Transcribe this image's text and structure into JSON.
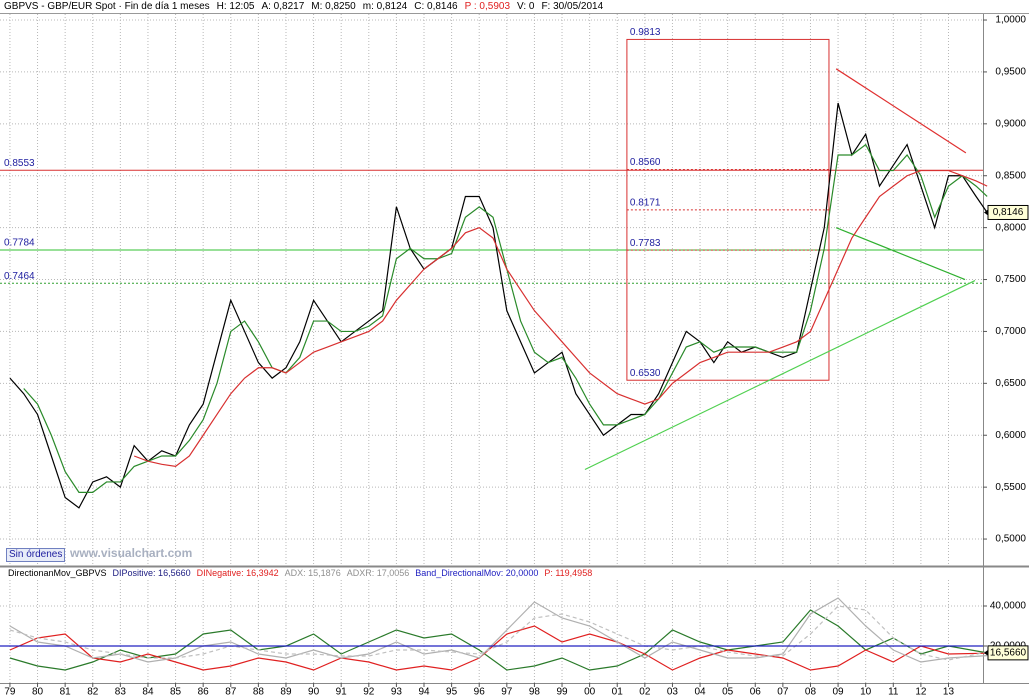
{
  "header": {
    "items": [
      {
        "text": "GBPVS - GBP/EUR Spot · Fin de día 1 meses",
        "color": "#000000"
      },
      {
        "text": "H: 12:05",
        "color": "#000000"
      },
      {
        "text": "A: 0,8217",
        "color": "#000000"
      },
      {
        "text": "M: 0,8250",
        "color": "#000000"
      },
      {
        "text": "m: 0,8124",
        "color": "#000000"
      },
      {
        "text": "C: 0,8146",
        "color": "#000000"
      },
      {
        "text": "P : 0,5903",
        "color": "#e02020"
      },
      {
        "text": "V: 0",
        "color": "#000000"
      },
      {
        "text": "F: 30/05/2014",
        "color": "#000000"
      }
    ]
  },
  "status": {
    "button": "Sin órdenes",
    "watermark": "www.visualchart.com"
  },
  "chart_data": [
    {
      "type": "line",
      "x": [
        1979,
        1979.5,
        1980,
        1980.5,
        1981,
        1981.5,
        1982,
        1982.5,
        1983,
        1983.5,
        1984,
        1984.5,
        1985,
        1985.5,
        1986,
        1986.5,
        1987,
        1987.5,
        1988,
        1988.5,
        1989,
        1989.5,
        1990,
        1990.5,
        1991,
        1991.5,
        1992,
        1992.5,
        1993,
        1993.5,
        1994,
        1994.5,
        1995,
        1995.5,
        1996,
        1996.5,
        1997,
        1997.5,
        1998,
        1998.5,
        1999,
        1999.5,
        2000,
        2000.5,
        2001,
        2001.5,
        2002,
        2002.5,
        2003,
        2003.5,
        2004,
        2004.5,
        2005,
        2005.5,
        2006,
        2006.5,
        2007,
        2007.5,
        2008,
        2008.5,
        2009,
        2009.5,
        2010,
        2010.5,
        2011,
        2011.5,
        2012,
        2012.5,
        2013,
        2013.5,
        2014,
        2014.4
      ],
      "series": [
        {
          "color": "#000000",
          "values": [
            0.655,
            0.64,
            0.62,
            0.58,
            0.54,
            0.53,
            0.555,
            0.56,
            0.55,
            0.59,
            0.575,
            0.585,
            0.58,
            0.61,
            0.63,
            0.68,
            0.73,
            0.7,
            0.67,
            0.655,
            0.665,
            0.69,
            0.73,
            0.71,
            0.69,
            0.7,
            0.71,
            0.72,
            0.82,
            0.78,
            0.76,
            0.77,
            0.78,
            0.83,
            0.83,
            0.8,
            0.72,
            0.69,
            0.66,
            0.67,
            0.68,
            0.64,
            0.62,
            0.6,
            0.61,
            0.62,
            0.62,
            0.64,
            0.67,
            0.7,
            0.69,
            0.67,
            0.69,
            0.68,
            0.685,
            0.68,
            0.675,
            0.68,
            0.74,
            0.8,
            0.92,
            0.87,
            0.89,
            0.84,
            0.86,
            0.88,
            0.84,
            0.8,
            0.85,
            0.85,
            0.83,
            0.8146
          ]
        },
        {
          "color": "#2a8a2a",
          "values": [
            null,
            0.645,
            0.63,
            0.6,
            0.565,
            0.545,
            0.545,
            0.555,
            0.555,
            0.57,
            0.575,
            0.58,
            0.58,
            0.595,
            0.615,
            0.65,
            0.7,
            0.71,
            0.69,
            0.665,
            0.66,
            0.675,
            0.71,
            0.71,
            0.7,
            0.7,
            0.705,
            0.715,
            0.77,
            0.78,
            0.77,
            0.77,
            0.775,
            0.81,
            0.82,
            0.81,
            0.76,
            0.71,
            0.68,
            0.67,
            0.675,
            0.655,
            0.63,
            0.61,
            0.61,
            0.615,
            0.62,
            0.635,
            0.66,
            0.685,
            0.69,
            0.68,
            0.685,
            0.685,
            0.685,
            0.68,
            0.68,
            0.68,
            0.72,
            0.78,
            0.87,
            0.87,
            0.88,
            0.855,
            0.855,
            0.87,
            0.85,
            0.81,
            0.84,
            0.85,
            0.84,
            0.83
          ]
        },
        {
          "color": "#d83030",
          "values": [
            null,
            null,
            null,
            null,
            null,
            null,
            null,
            null,
            null,
            0.58,
            0.575,
            0.572,
            0.57,
            0.58,
            0.6,
            0.62,
            0.64,
            0.655,
            0.665,
            0.665,
            0.66,
            0.67,
            0.68,
            0.685,
            0.69,
            0.695,
            0.7,
            0.71,
            0.73,
            0.745,
            0.76,
            0.77,
            0.78,
            0.795,
            0.8,
            0.79,
            0.76,
            0.74,
            0.72,
            0.705,
            0.69,
            0.675,
            0.66,
            0.65,
            0.64,
            0.635,
            0.63,
            0.635,
            0.65,
            0.66,
            0.67,
            0.675,
            0.68,
            0.68,
            0.68,
            0.68,
            0.685,
            0.69,
            0.7,
            0.73,
            0.76,
            0.79,
            0.81,
            0.83,
            0.84,
            0.85,
            0.855,
            0.855,
            0.855,
            0.85,
            0.845,
            0.84
          ]
        }
      ],
      "xlim": [
        1978.64,
        2014.25
      ],
      "ylim": [
        0.475,
        1.0058
      ],
      "yticks": [
        {
          "value": 0.5,
          "label": "0,5000"
        },
        {
          "value": 0.55,
          "label": "0,5500"
        },
        {
          "value": 0.6,
          "label": "0,6000"
        },
        {
          "value": 0.65,
          "label": "0,6500"
        },
        {
          "value": 0.7,
          "label": "0,7000"
        },
        {
          "value": 0.75,
          "label": "0,7500"
        },
        {
          "value": 0.8,
          "label": "0,8000"
        },
        {
          "value": 0.85,
          "label": "0,8500"
        },
        {
          "value": 0.9,
          "label": "0,9000"
        },
        {
          "value": 0.95,
          "label": "0,9500"
        },
        {
          "value": 1.0,
          "label": "1,0000"
        }
      ],
      "xticks": [
        {
          "value": 1979,
          "label": "79"
        },
        {
          "value": 1980,
          "label": "80"
        },
        {
          "value": 1981,
          "label": "81"
        },
        {
          "value": 1982,
          "label": "82"
        },
        {
          "value": 1983,
          "label": "83"
        },
        {
          "value": 1984,
          "label": "84"
        },
        {
          "value": 1985,
          "label": "85"
        },
        {
          "value": 1986,
          "label": "86"
        },
        {
          "value": 1987,
          "label": "87"
        },
        {
          "value": 1988,
          "label": "88"
        },
        {
          "value": 1989,
          "label": "89"
        },
        {
          "value": 1990,
          "label": "90"
        },
        {
          "value": 1991,
          "label": "91"
        },
        {
          "value": 1992,
          "label": "92"
        },
        {
          "value": 1993,
          "label": "93"
        },
        {
          "value": 1994,
          "label": "94"
        },
        {
          "value": 1995,
          "label": "95"
        },
        {
          "value": 1996,
          "label": "96"
        },
        {
          "value": 1997,
          "label": "97"
        },
        {
          "value": 1998,
          "label": "98"
        },
        {
          "value": 1999,
          "label": "99"
        },
        {
          "value": 2000,
          "label": "00"
        },
        {
          "value": 2001,
          "label": "01"
        },
        {
          "value": 2002,
          "label": "02"
        },
        {
          "value": 2003,
          "label": "03"
        },
        {
          "value": 2004,
          "label": "04"
        },
        {
          "value": 2005,
          "label": "05"
        },
        {
          "value": 2006,
          "label": "06"
        },
        {
          "value": 2007,
          "label": "07"
        },
        {
          "value": 2008,
          "label": "08"
        },
        {
          "value": 2009,
          "label": "09"
        },
        {
          "value": 2010,
          "label": "10"
        },
        {
          "value": 2011,
          "label": "11"
        },
        {
          "value": 2012,
          "label": "12"
        },
        {
          "value": 2013,
          "label": "13"
        }
      ],
      "grid": true,
      "hlines": [
        {
          "value": 0.8553,
          "color": "#d83030",
          "dashed": false
        },
        {
          "value": 0.7784,
          "color": "#30c030",
          "dashed": false
        },
        {
          "value": 0.7464,
          "color": "#30a030",
          "dashed": true
        }
      ],
      "fib": {
        "color": "#d83030",
        "x": [
          2001.35,
          2008.67
        ],
        "levels": [
          0.9813,
          {
            "value": 0.856,
            "label": "0.8560"
          },
          0.8171,
          0.7783,
          {
            "value": 0.653,
            "label": "0.6530"
          }
        ]
      },
      "trendlines": [
        {
          "color": "#50d050",
          "x": [
            1999.83,
            2013.96
          ],
          "y": [
            0.567,
            0.749
          ]
        },
        {
          "color": "#e03030",
          "x": [
            2008.93,
            2013.63
          ],
          "y": [
            0.953,
            0.872
          ]
        },
        {
          "color": "#30b030",
          "x": [
            2008.93,
            2013.6
          ],
          "y": [
            0.8,
            0.75
          ]
        }
      ],
      "last": {
        "value": 0.8146,
        "label": "0,8146"
      }
    },
    {
      "type": "line",
      "title": "DirectionanMov_GBPVS",
      "x": [
        1979,
        1980,
        1981,
        1982,
        1983,
        1984,
        1985,
        1986,
        1987,
        1988,
        1989,
        1990,
        1991,
        1992,
        1993,
        1994,
        1995,
        1996,
        1997,
        1998,
        1999,
        2000,
        2001,
        2002,
        2003,
        2004,
        2005,
        2006,
        2007,
        2008,
        2009,
        2010,
        2011,
        2012,
        2013,
        2014.4
      ],
      "series": [
        {
          "name": "DIPositive: 16,5660",
          "color": "#2a7a2a",
          "label_color": "#1a1a80",
          "values": [
            14,
            10,
            8,
            12,
            18,
            14,
            16,
            26,
            28,
            18,
            20,
            26,
            16,
            22,
            28,
            24,
            26,
            18,
            8,
            10,
            14,
            8,
            10,
            16,
            28,
            22,
            18,
            20,
            22,
            38,
            30,
            18,
            24,
            16,
            20,
            16.566
          ]
        },
        {
          "name": "DINegative: 16,3942",
          "color": "#e02020",
          "label_color": "#e02020",
          "values": [
            18,
            24,
            26,
            14,
            12,
            16,
            12,
            8,
            10,
            14,
            12,
            8,
            14,
            12,
            8,
            10,
            8,
            14,
            26,
            30,
            22,
            26,
            22,
            16,
            8,
            14,
            18,
            16,
            14,
            8,
            10,
            18,
            12,
            20,
            16,
            16.3942
          ]
        },
        {
          "name": "ADX: 15,1876",
          "color": "#b0b0b0",
          "label_color": "#909090",
          "dashed": false,
          "values": [
            30,
            22,
            20,
            14,
            16,
            12,
            14,
            20,
            22,
            16,
            14,
            18,
            14,
            16,
            22,
            16,
            18,
            14,
            28,
            42,
            34,
            30,
            22,
            14,
            22,
            18,
            14,
            14,
            16,
            36,
            44,
            30,
            18,
            12,
            14,
            15.1876
          ]
        },
        {
          "name": "ADXR: 17,0056",
          "color": "#c0c0c0",
          "label_color": "#909090",
          "dashed": true,
          "values": [
            28,
            24,
            22,
            18,
            16,
            14,
            14,
            16,
            20,
            18,
            16,
            16,
            15,
            15,
            18,
            18,
            17,
            16,
            22,
            34,
            36,
            32,
            26,
            20,
            18,
            20,
            17,
            15,
            15,
            26,
            40,
            38,
            24,
            16,
            13,
            17.0056
          ]
        }
      ],
      "band": {
        "name": "Band_DirectionalMov: 20,0000",
        "value": 20,
        "color": "#2020c0"
      },
      "note": {
        "text": "P: 119,4958",
        "color": "#e02020"
      },
      "xlim": [
        1978.64,
        2014.25
      ],
      "ylim": [
        1.5,
        59
      ],
      "yticks": [
        {
          "value": 20,
          "label": "20,0000"
        },
        {
          "value": 40,
          "label": "40,0000"
        }
      ],
      "grid": true,
      "last": {
        "value": 16.566,
        "label": "16,5660"
      }
    }
  ]
}
